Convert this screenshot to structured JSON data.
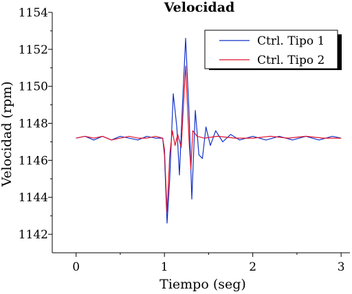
{
  "chart_data": {
    "type": "line",
    "title": "Velocidad",
    "xlabel": "Tiempo (seg)",
    "ylabel": "Velocidad (rpm)",
    "xlim": [
      -0.27,
      3.1
    ],
    "ylim": [
      1141,
      1154
    ],
    "xticks": [
      0,
      1,
      2,
      3
    ],
    "yticks": [
      1142,
      1144,
      1146,
      1148,
      1150,
      1152,
      1154
    ],
    "x_tick_labels": [
      "0",
      "1",
      "2",
      "3"
    ],
    "y_tick_labels": [
      "1142",
      "1144",
      "1146",
      "1148",
      "1150",
      "1152",
      "1154"
    ],
    "legend_position": "top-right",
    "series": [
      {
        "name": "Ctrl. Tipo 1",
        "color": "#1030c8",
        "points": [
          [
            0.0,
            1147.2
          ],
          [
            0.1,
            1147.3
          ],
          [
            0.2,
            1147.1
          ],
          [
            0.3,
            1147.3
          ],
          [
            0.4,
            1147.1
          ],
          [
            0.5,
            1147.3
          ],
          [
            0.6,
            1147.2
          ],
          [
            0.7,
            1147.1
          ],
          [
            0.8,
            1147.3
          ],
          [
            0.9,
            1147.2
          ],
          [
            0.98,
            1147.2
          ],
          [
            1.0,
            1146.3
          ],
          [
            1.03,
            1142.6
          ],
          [
            1.06,
            1145.0
          ],
          [
            1.1,
            1149.6
          ],
          [
            1.14,
            1147.8
          ],
          [
            1.17,
            1145.2
          ],
          [
            1.2,
            1148.6
          ],
          [
            1.24,
            1152.6
          ],
          [
            1.28,
            1148.4
          ],
          [
            1.31,
            1143.9
          ],
          [
            1.35,
            1148.7
          ],
          [
            1.39,
            1146.3
          ],
          [
            1.43,
            1146.1
          ],
          [
            1.47,
            1147.8
          ],
          [
            1.52,
            1146.8
          ],
          [
            1.58,
            1147.6
          ],
          [
            1.66,
            1147.0
          ],
          [
            1.75,
            1147.4
          ],
          [
            1.85,
            1147.1
          ],
          [
            2.0,
            1147.3
          ],
          [
            2.15,
            1147.1
          ],
          [
            2.3,
            1147.3
          ],
          [
            2.45,
            1147.1
          ],
          [
            2.6,
            1147.3
          ],
          [
            2.75,
            1147.1
          ],
          [
            2.9,
            1147.3
          ],
          [
            3.0,
            1147.2
          ]
        ]
      },
      {
        "name": "Ctrl. Tipo 2",
        "color": "#e0102a",
        "points": [
          [
            0.0,
            1147.2
          ],
          [
            0.1,
            1147.3
          ],
          [
            0.2,
            1147.2
          ],
          [
            0.3,
            1147.3
          ],
          [
            0.4,
            1147.1
          ],
          [
            0.5,
            1147.2
          ],
          [
            0.6,
            1147.3
          ],
          [
            0.7,
            1147.2
          ],
          [
            0.8,
            1147.2
          ],
          [
            0.9,
            1147.3
          ],
          [
            0.98,
            1147.2
          ],
          [
            1.0,
            1146.6
          ],
          [
            1.03,
            1143.2
          ],
          [
            1.06,
            1146.3
          ],
          [
            1.09,
            1147.6
          ],
          [
            1.12,
            1146.8
          ],
          [
            1.15,
            1147.4
          ],
          [
            1.19,
            1146.7
          ],
          [
            1.24,
            1151.1
          ],
          [
            1.28,
            1146.9
          ],
          [
            1.3,
            1145.5
          ],
          [
            1.32,
            1147.6
          ],
          [
            1.37,
            1147.3
          ],
          [
            1.45,
            1147.2
          ],
          [
            1.6,
            1147.3
          ],
          [
            1.8,
            1147.2
          ],
          [
            2.0,
            1147.2
          ],
          [
            2.2,
            1147.3
          ],
          [
            2.4,
            1147.2
          ],
          [
            2.6,
            1147.3
          ],
          [
            2.8,
            1147.2
          ],
          [
            3.0,
            1147.2
          ]
        ]
      }
    ]
  }
}
